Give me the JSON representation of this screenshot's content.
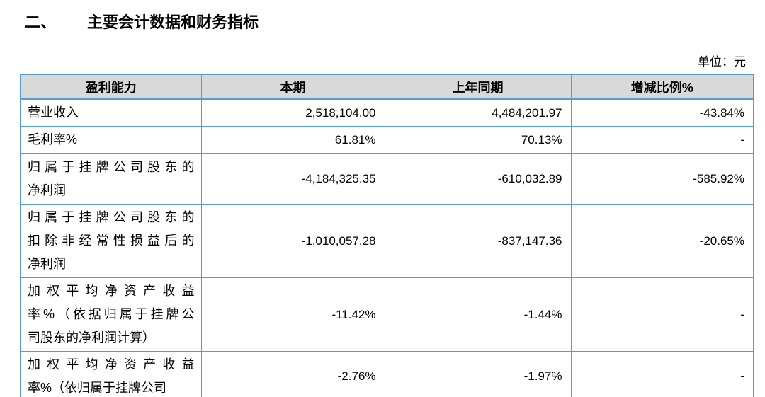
{
  "page": {
    "section_number": "二、",
    "title": "主要会计数据和财务指标",
    "unit_label": "单位：元"
  },
  "table": {
    "headers": [
      "盈利能力",
      "本期",
      "上年同期",
      "增减比例%"
    ],
    "rows": [
      {
        "label_lines": [
          "营业收入"
        ],
        "current": "2,518,104.00",
        "prior": "4,484,201.97",
        "change": "-43.84%"
      },
      {
        "label_lines": [
          "毛利率%"
        ],
        "current": "61.81%",
        "prior": "70.13%",
        "change": "-"
      },
      {
        "label_lines": [
          "归属于挂牌公司股东的",
          "净利润"
        ],
        "current": "-4,184,325.35",
        "prior": "-610,032.89",
        "change": "-585.92%"
      },
      {
        "label_lines": [
          "归属于挂牌公司股东的",
          "扣除非经常性损益后的",
          "净利润"
        ],
        "current": "-1,010,057.28",
        "prior": "-837,147.36",
        "change": "-20.65%"
      },
      {
        "label_lines": [
          "加权平均净资产收益",
          "率%（依据归属于挂牌公",
          "司股东的净利润计算）"
        ],
        "current": "-11.42%",
        "prior": "-1.44%",
        "change": "-"
      },
      {
        "label_lines": [
          "加权平均净资产收益",
          "率%（依归属于挂牌公司"
        ],
        "current": "-2.76%",
        "prior": "-1.97%",
        "change": "-"
      }
    ]
  }
}
